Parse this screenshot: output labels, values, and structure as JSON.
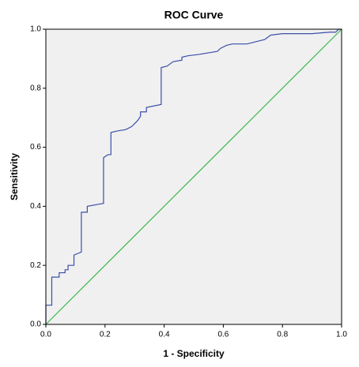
{
  "chart_data": {
    "type": "line",
    "title": "ROC Curve",
    "x_label": "1 - Specificity",
    "y_label": "Sensitivity",
    "xlim": [
      0,
      1
    ],
    "ylim": [
      0,
      1
    ],
    "xticks": [
      {
        "value": 0,
        "label": "0.0"
      },
      0.2,
      0.4,
      0.6,
      0.8,
      {
        "value": 1,
        "label": "1.0"
      }
    ],
    "yticks": [
      {
        "value": 0,
        "label": "0.0"
      },
      0.2,
      0.4,
      0.6,
      0.8,
      {
        "value": 1,
        "label": "1.0"
      }
    ],
    "grid": false,
    "series": [
      {
        "color": "#3b4fa8",
        "x": [
          0,
          0,
          0.02,
          0.02,
          0.045,
          0.045,
          0.065,
          0.065,
          0.075,
          0.075,
          0.095,
          0.095,
          0.12,
          0.12,
          0.14,
          0.14,
          0.195,
          0.195,
          0.21,
          0.21,
          0.22,
          0.22,
          0.24,
          0.27,
          0.29,
          0.31,
          0.32,
          0.32,
          0.34,
          0.34,
          0.39,
          0.39,
          0.41,
          0.43,
          0.46,
          0.46,
          0.48,
          0.52,
          0.55,
          0.58,
          0.59,
          0.61,
          0.63,
          0.68,
          0.7,
          0.72,
          0.74,
          0.76,
          0.8,
          0.9,
          0.96,
          0.98,
          0.99,
          1.0
        ],
        "values": [
          0,
          0.065,
          0.065,
          0.16,
          0.16,
          0.175,
          0.175,
          0.185,
          0.185,
          0.2,
          0.2,
          0.235,
          0.245,
          0.38,
          0.38,
          0.4,
          0.41,
          0.565,
          0.575,
          0.575,
          0.575,
          0.65,
          0.655,
          0.66,
          0.67,
          0.69,
          0.705,
          0.72,
          0.72,
          0.735,
          0.745,
          0.87,
          0.875,
          0.89,
          0.895,
          0.905,
          0.91,
          0.915,
          0.92,
          0.925,
          0.935,
          0.945,
          0.95,
          0.95,
          0.955,
          0.96,
          0.965,
          0.98,
          0.985,
          0.985,
          0.99,
          0.99,
          1.0,
          1.0
        ]
      },
      {
        "color": "#3cb84a",
        "x": [
          0,
          1
        ],
        "values": [
          0,
          1
        ]
      }
    ]
  }
}
